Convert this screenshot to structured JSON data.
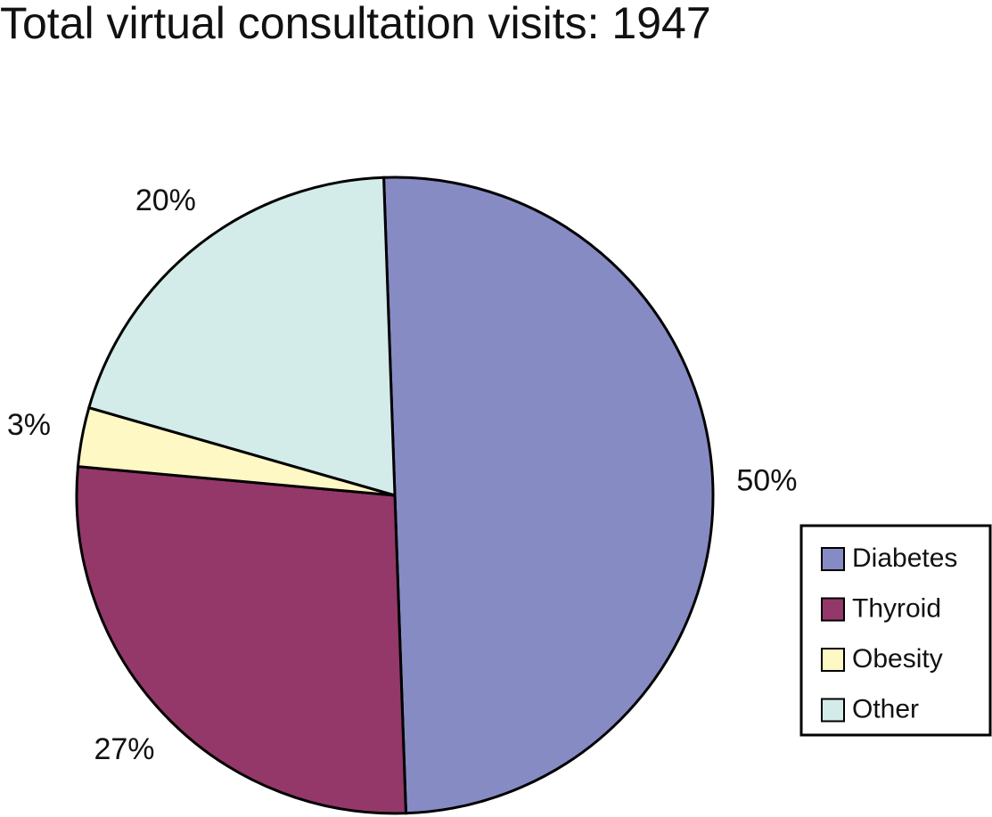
{
  "chart_data": {
    "type": "pie",
    "title": "Total virtual consultation visits: 1947",
    "categories": [
      "Diabetes",
      "Thyroid",
      "Obesity",
      "Other"
    ],
    "values": [
      50,
      27,
      3,
      20
    ],
    "value_labels": [
      "50%",
      "27%",
      "3%",
      "20%"
    ],
    "colors": [
      "#878bc4",
      "#933869",
      "#fdf8c4",
      "#d3ecea"
    ],
    "legend": "bottom-right"
  }
}
